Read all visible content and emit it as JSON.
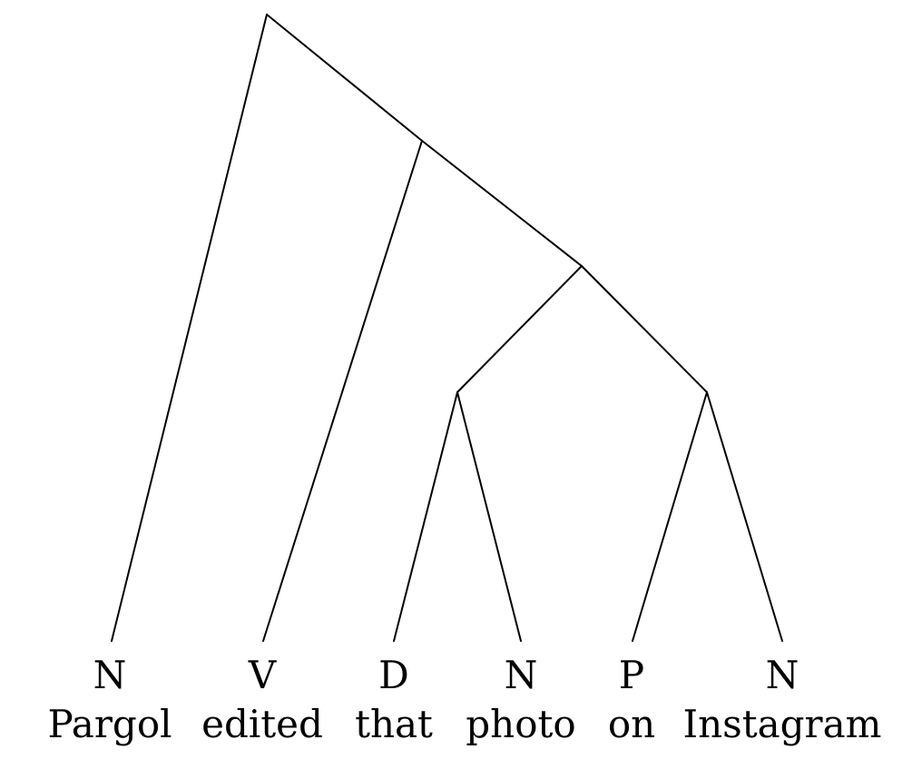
{
  "leaves": [
    {
      "category": "N",
      "word": "Pargol"
    },
    {
      "category": "V",
      "word": "edited"
    },
    {
      "category": "D",
      "word": "that"
    },
    {
      "category": "N",
      "word": "photo"
    },
    {
      "category": "P",
      "word": "on"
    },
    {
      "category": "N",
      "word": "Instagram"
    }
  ]
}
